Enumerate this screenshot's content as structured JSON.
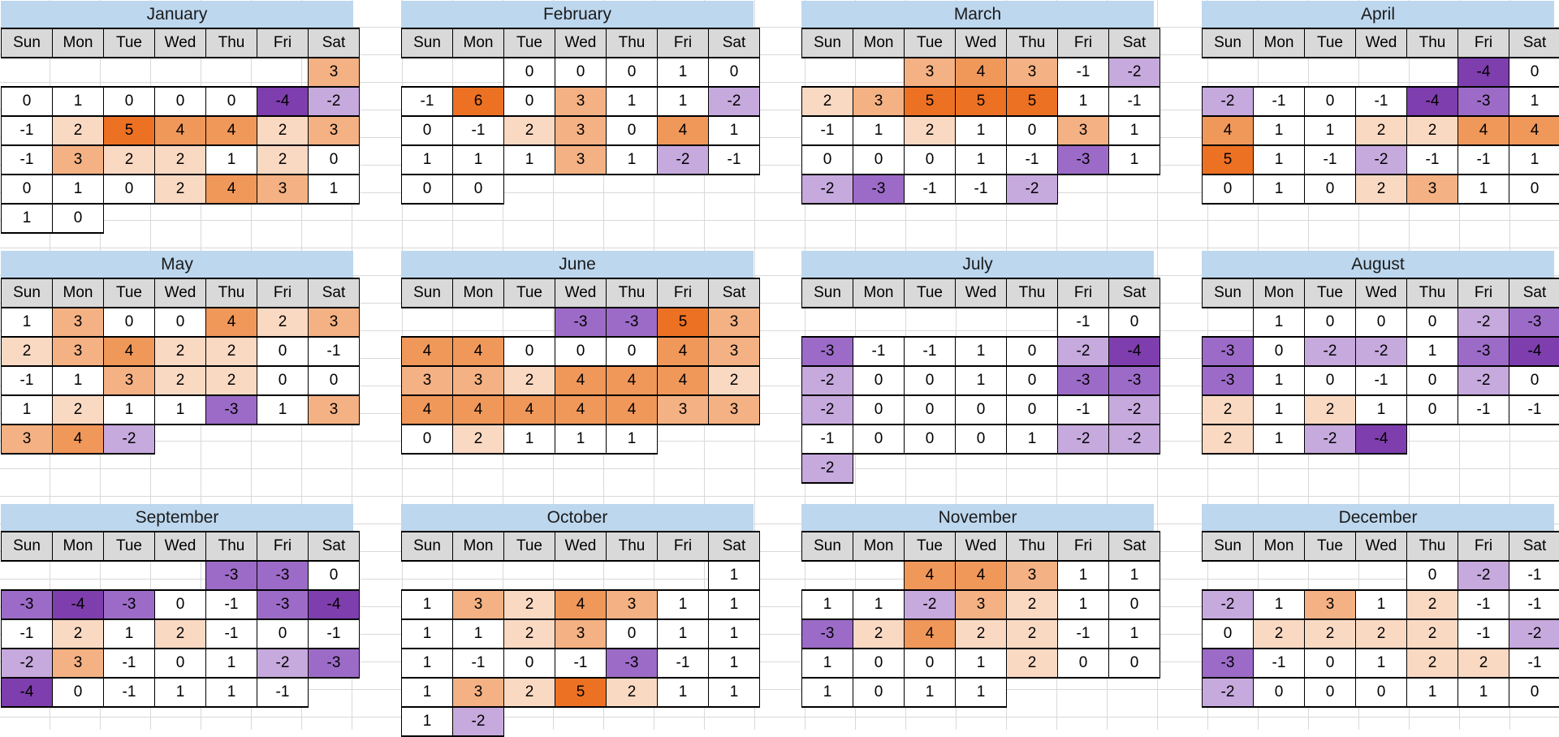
{
  "sheet_title": "Year calendar value heatmap",
  "day_headers": [
    "Sun",
    "Mon",
    "Tue",
    "Wed",
    "Thu",
    "Fri",
    "Sat"
  ],
  "colors": {
    "title_bg": "#bdd7ee",
    "title_text": "#1b1b1b",
    "header_bg": "#d9d9d9",
    "cell_border": "#000000",
    "gridline": "#d9d9d9",
    "text": "#000000"
  },
  "color_scale": {
    "-4": "#7e3ead",
    "-3": "#9c6bc7",
    "-2": "#c6a9dd",
    "-1": "#ffffff",
    "0": "#ffffff",
    "1": "#ffffff",
    "2": "#fad9c3",
    "3": "#f4b183",
    "4": "#f0975a",
    "5": "#ed7123",
    "6": "#ed7123"
  },
  "chart_data": {
    "type": "heatmap",
    "note": "calendar heatmaps; weeks are rows Sun-Sat, null = no cell",
    "months": [
      {
        "name": "January",
        "weeks": [
          [
            null,
            null,
            null,
            null,
            null,
            null,
            3
          ],
          [
            0,
            1,
            0,
            0,
            0,
            -4,
            -2
          ],
          [
            -1,
            2,
            5,
            4,
            4,
            2,
            3
          ],
          [
            -1,
            3,
            2,
            2,
            1,
            2,
            0
          ],
          [
            0,
            1,
            0,
            2,
            4,
            3,
            1
          ],
          [
            1,
            0,
            null,
            null,
            null,
            null,
            null
          ]
        ]
      },
      {
        "name": "February",
        "weeks": [
          [
            null,
            null,
            0,
            0,
            0,
            1,
            0
          ],
          [
            -1,
            6,
            0,
            3,
            1,
            1,
            -2
          ],
          [
            0,
            -1,
            2,
            3,
            0,
            4,
            1
          ],
          [
            1,
            1,
            1,
            3,
            1,
            -2,
            -1
          ],
          [
            0,
            0,
            null,
            null,
            null,
            null,
            null
          ]
        ]
      },
      {
        "name": "March",
        "weeks": [
          [
            null,
            null,
            3,
            4,
            3,
            -1,
            -2
          ],
          [
            2,
            3,
            5,
            5,
            5,
            1,
            -1
          ],
          [
            -1,
            1,
            2,
            1,
            0,
            3,
            1
          ],
          [
            0,
            0,
            0,
            1,
            -1,
            -3,
            1
          ],
          [
            -2,
            -3,
            -1,
            -1,
            -2,
            null,
            null
          ]
        ]
      },
      {
        "name": "April",
        "weeks": [
          [
            null,
            null,
            null,
            null,
            null,
            -4,
            0
          ],
          [
            -2,
            -1,
            0,
            -1,
            -4,
            -3,
            1
          ],
          [
            4,
            1,
            1,
            2,
            2,
            4,
            4
          ],
          [
            5,
            1,
            -1,
            -2,
            -1,
            -1,
            1
          ],
          [
            0,
            1,
            0,
            2,
            3,
            1,
            0
          ]
        ]
      },
      {
        "name": "May",
        "weeks": [
          [
            1,
            3,
            0,
            0,
            4,
            2,
            3
          ],
          [
            2,
            3,
            4,
            2,
            2,
            0,
            -1
          ],
          [
            -1,
            1,
            3,
            2,
            2,
            0,
            0
          ],
          [
            1,
            2,
            1,
            1,
            -3,
            1,
            3
          ],
          [
            3,
            4,
            -2,
            null,
            null,
            null,
            null
          ]
        ]
      },
      {
        "name": "June",
        "weeks": [
          [
            null,
            null,
            null,
            -3,
            -3,
            5,
            3
          ],
          [
            4,
            4,
            0,
            0,
            0,
            4,
            3
          ],
          [
            3,
            3,
            2,
            4,
            4,
            4,
            2
          ],
          [
            4,
            4,
            4,
            4,
            4,
            3,
            3
          ],
          [
            0,
            2,
            1,
            1,
            1,
            null,
            null
          ]
        ]
      },
      {
        "name": "July",
        "weeks": [
          [
            null,
            null,
            null,
            null,
            null,
            -1,
            0
          ],
          [
            -3,
            -1,
            -1,
            1,
            0,
            -2,
            -4
          ],
          [
            -2,
            0,
            0,
            1,
            0,
            -3,
            -3
          ],
          [
            -2,
            0,
            0,
            0,
            0,
            -1,
            -2
          ],
          [
            -1,
            0,
            0,
            0,
            1,
            -2,
            -2
          ],
          [
            -2,
            null,
            null,
            null,
            null,
            null,
            null
          ]
        ]
      },
      {
        "name": "August",
        "weeks": [
          [
            null,
            1,
            0,
            0,
            0,
            -2,
            -3
          ],
          [
            -3,
            0,
            -2,
            -2,
            1,
            -3,
            -4
          ],
          [
            -3,
            1,
            0,
            -1,
            0,
            -2,
            0
          ],
          [
            2,
            1,
            2,
            1,
            0,
            -1,
            -1
          ],
          [
            2,
            1,
            -2,
            -4,
            null,
            null,
            null
          ]
        ]
      },
      {
        "name": "September",
        "weeks": [
          [
            null,
            null,
            null,
            null,
            -3,
            -3,
            0
          ],
          [
            -3,
            -4,
            -3,
            0,
            -1,
            -3,
            -4
          ],
          [
            -1,
            2,
            1,
            2,
            -1,
            0,
            -1
          ],
          [
            -2,
            3,
            -1,
            0,
            1,
            -2,
            -3
          ],
          [
            -4,
            0,
            -1,
            1,
            1,
            -1,
            null
          ]
        ]
      },
      {
        "name": "October",
        "weeks": [
          [
            null,
            null,
            null,
            null,
            null,
            null,
            1
          ],
          [
            1,
            3,
            2,
            4,
            3,
            1,
            1
          ],
          [
            1,
            1,
            2,
            3,
            0,
            1,
            1
          ],
          [
            1,
            -1,
            0,
            -1,
            -3,
            -1,
            1
          ],
          [
            1,
            3,
            2,
            5,
            2,
            1,
            1
          ],
          [
            1,
            -2,
            null,
            null,
            null,
            null,
            null
          ]
        ]
      },
      {
        "name": "November",
        "weeks": [
          [
            null,
            null,
            4,
            4,
            3,
            1,
            1
          ],
          [
            1,
            1,
            -2,
            3,
            2,
            1,
            0
          ],
          [
            -3,
            2,
            4,
            2,
            2,
            -1,
            1
          ],
          [
            1,
            0,
            0,
            1,
            2,
            0,
            0
          ],
          [
            1,
            0,
            1,
            1,
            null,
            null,
            null
          ]
        ]
      },
      {
        "name": "December",
        "weeks": [
          [
            null,
            null,
            null,
            null,
            0,
            -2,
            -1
          ],
          [
            -2,
            1,
            3,
            1,
            2,
            -1,
            -1
          ],
          [
            0,
            2,
            2,
            2,
            2,
            -1,
            -2
          ],
          [
            -3,
            -1,
            0,
            1,
            2,
            2,
            -1
          ],
          [
            -2,
            0,
            0,
            0,
            1,
            1,
            0
          ]
        ]
      }
    ]
  }
}
